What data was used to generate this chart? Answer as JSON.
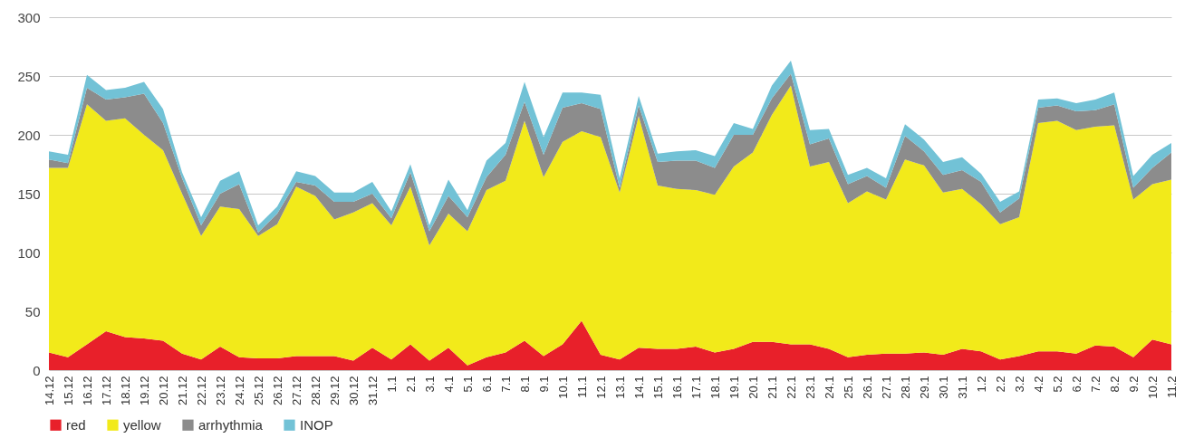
{
  "chart_data": {
    "type": "area",
    "stacked": true,
    "categories": [
      "14.12",
      "15.12",
      "16.12",
      "17.12",
      "18.12",
      "19.12",
      "20.12",
      "21.12",
      "22.12",
      "23.12",
      "24.12",
      "25.12",
      "26.12",
      "27.12",
      "28.12",
      "29.12",
      "30.12",
      "31.12",
      "1.1",
      "2.1",
      "3.1",
      "4.1",
      "5.1",
      "6.1",
      "7.1",
      "8.1",
      "9.1",
      "10.1",
      "11.1",
      "12.1",
      "13.1",
      "14.1",
      "15.1",
      "16.1",
      "17.1",
      "18.1",
      "19.1",
      "20.1",
      "21.1",
      "22.1",
      "23.1",
      "24.1",
      "25.1",
      "26.1",
      "27.1",
      "28.1",
      "29.1",
      "30.1",
      "31.1",
      "1.2",
      "2.2",
      "3.2",
      "4.2",
      "5.2",
      "6.2",
      "7.2",
      "8.2",
      "9.2",
      "10.2",
      "11.2"
    ],
    "series": [
      {
        "name": "red",
        "color": "#e8202a",
        "values": [
          15,
          11,
          22,
          33,
          28,
          27,
          25,
          14,
          9,
          20,
          11,
          10,
          10,
          12,
          12,
          12,
          8,
          19,
          9,
          22,
          8,
          19,
          4,
          11,
          15,
          25,
          12,
          22,
          42,
          13,
          9,
          19,
          18,
          18,
          20,
          15,
          18,
          24,
          24,
          22,
          22,
          18,
          11,
          13,
          14,
          14,
          15,
          13,
          18,
          16,
          9,
          12,
          16,
          16,
          14,
          21,
          20,
          11,
          26,
          22
        ]
      },
      {
        "name": "yellow",
        "color": "#f2ea1a",
        "values": [
          157,
          161,
          204,
          179,
          186,
          173,
          162,
          136,
          105,
          119,
          126,
          104,
          114,
          144,
          136,
          116,
          126,
          123,
          114,
          134,
          98,
          114,
          114,
          142,
          146,
          187,
          152,
          172,
          161,
          185,
          142,
          197,
          139,
          136,
          133,
          134,
          155,
          161,
          193,
          220,
          151,
          159,
          131,
          139,
          131,
          165,
          159,
          138,
          136,
          125,
          115,
          118,
          194,
          196,
          190,
          186,
          188,
          134,
          132,
          140
        ]
      },
      {
        "name": "arrhythmia",
        "color": "#8c8c8c",
        "values": [
          7,
          4,
          14,
          18,
          18,
          35,
          23,
          13,
          9,
          11,
          21,
          3,
          9,
          4,
          9,
          15,
          9,
          8,
          6,
          12,
          12,
          15,
          12,
          11,
          22,
          16,
          19,
          29,
          24,
          24,
          4,
          9,
          20,
          24,
          25,
          23,
          27,
          15,
          14,
          10,
          19,
          20,
          16,
          13,
          10,
          20,
          12,
          15,
          16,
          19,
          10,
          16,
          13,
          13,
          16,
          14,
          18,
          10,
          14,
          23
        ]
      },
      {
        "name": "INOP",
        "color": "#72c2d6",
        "values": [
          7,
          7,
          11,
          8,
          8,
          10,
          12,
          5,
          7,
          11,
          11,
          6,
          6,
          9,
          8,
          8,
          8,
          10,
          6,
          7,
          5,
          14,
          6,
          14,
          10,
          17,
          15,
          13,
          9,
          12,
          8,
          8,
          7,
          8,
          9,
          10,
          10,
          5,
          11,
          11,
          12,
          8,
          8,
          7,
          8,
          10,
          10,
          11,
          11,
          7,
          9,
          6,
          7,
          6,
          7,
          9,
          10,
          10,
          11,
          8
        ]
      }
    ],
    "ylim": [
      0,
      300
    ],
    "yticks": [
      0,
      50,
      100,
      150,
      200,
      250,
      300
    ],
    "grid": "y",
    "legend": "bottom"
  }
}
